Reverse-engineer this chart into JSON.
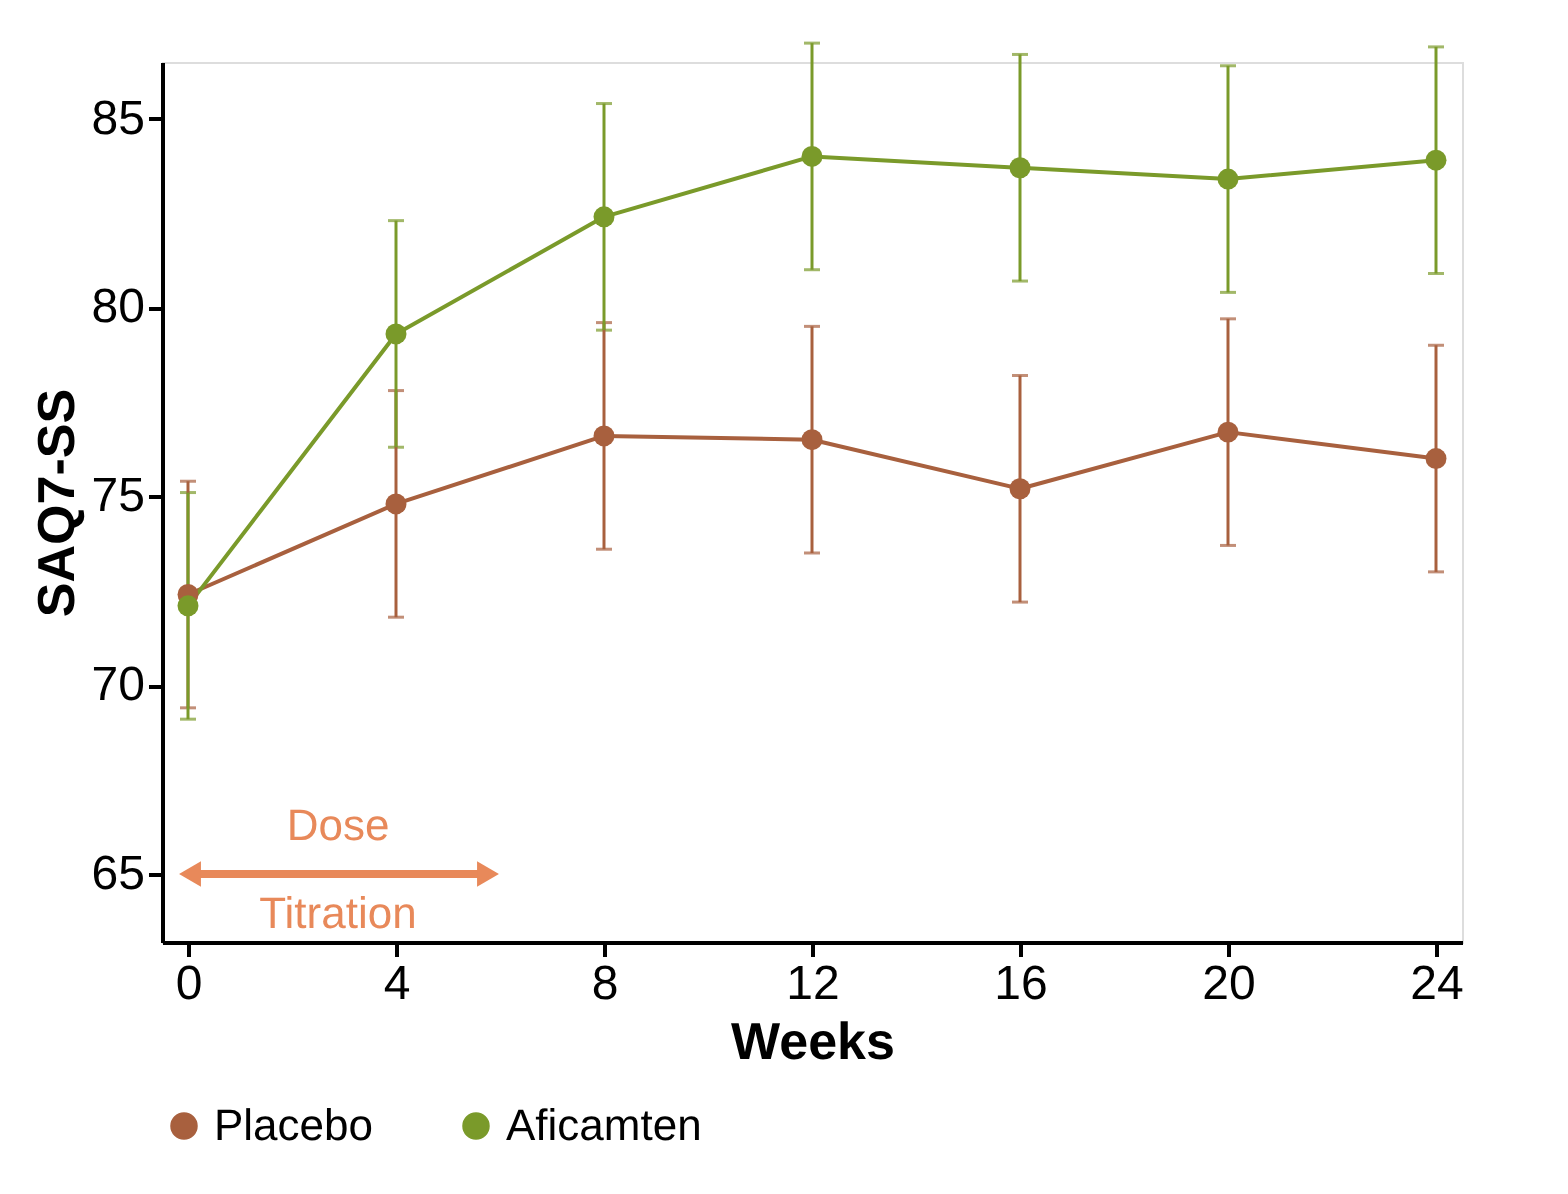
{
  "chart_data": {
    "type": "line",
    "xlabel": "Weeks",
    "ylabel": "SAQ7-SS",
    "x": [
      0,
      4,
      8,
      12,
      16,
      20,
      24
    ],
    "series": [
      {
        "name": "Placebo",
        "color": "#a8603e",
        "values": [
          72.4,
          74.8,
          76.6,
          76.5,
          75.2,
          76.7,
          76.0
        ],
        "errors": [
          3,
          3,
          3,
          3,
          3,
          3,
          3
        ]
      },
      {
        "name": "Aficamten",
        "color": "#7a9a2a",
        "values": [
          72.1,
          79.3,
          82.4,
          84.0,
          83.7,
          83.4,
          83.9
        ],
        "errors": [
          3,
          3,
          3,
          3,
          3,
          3,
          3
        ]
      }
    ],
    "xlim": [
      -0.5,
      24.5
    ],
    "xticks": [
      0,
      4,
      8,
      12,
      16,
      20,
      24
    ],
    "ylim": [
      63.2,
      86.5
    ],
    "yticks": [
      65,
      70,
      75,
      80,
      85
    ],
    "annotations": [
      "Dose Titration"
    ],
    "marker": "circle",
    "line_style": "solid",
    "grid": false,
    "legend": "bottom"
  }
}
